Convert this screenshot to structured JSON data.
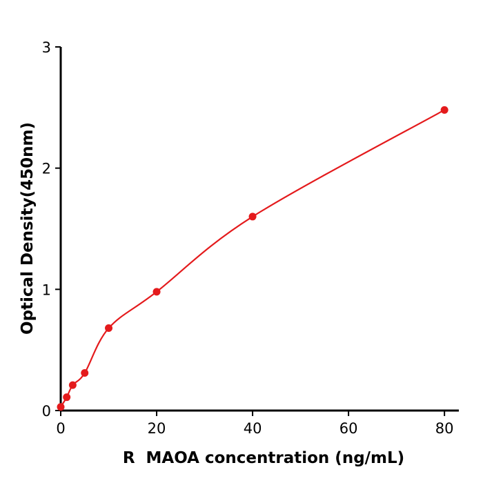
{
  "chart_data": {
    "type": "scatter",
    "title": "",
    "xlabel": "R  MAOA concentration (ng/mL)",
    "ylabel": "Optical Density(450nm)",
    "x": [
      0,
      1.25,
      2.5,
      5,
      10,
      20,
      40,
      80
    ],
    "y": [
      0.03,
      0.11,
      0.21,
      0.31,
      0.68,
      0.98,
      1.6,
      2.48
    ],
    "xlim": [
      0,
      83
    ],
    "ylim": [
      0,
      3
    ],
    "xticks": [
      0,
      20,
      40,
      60,
      80
    ],
    "yticks": [
      0,
      1,
      2,
      3
    ],
    "point_color": "#e41a1c",
    "line_color": "#e41a1c",
    "axis_color": "#000000",
    "background_color": "#ffffff",
    "grid": false,
    "legend": "none",
    "curve": "smooth fitted curve through data points"
  }
}
